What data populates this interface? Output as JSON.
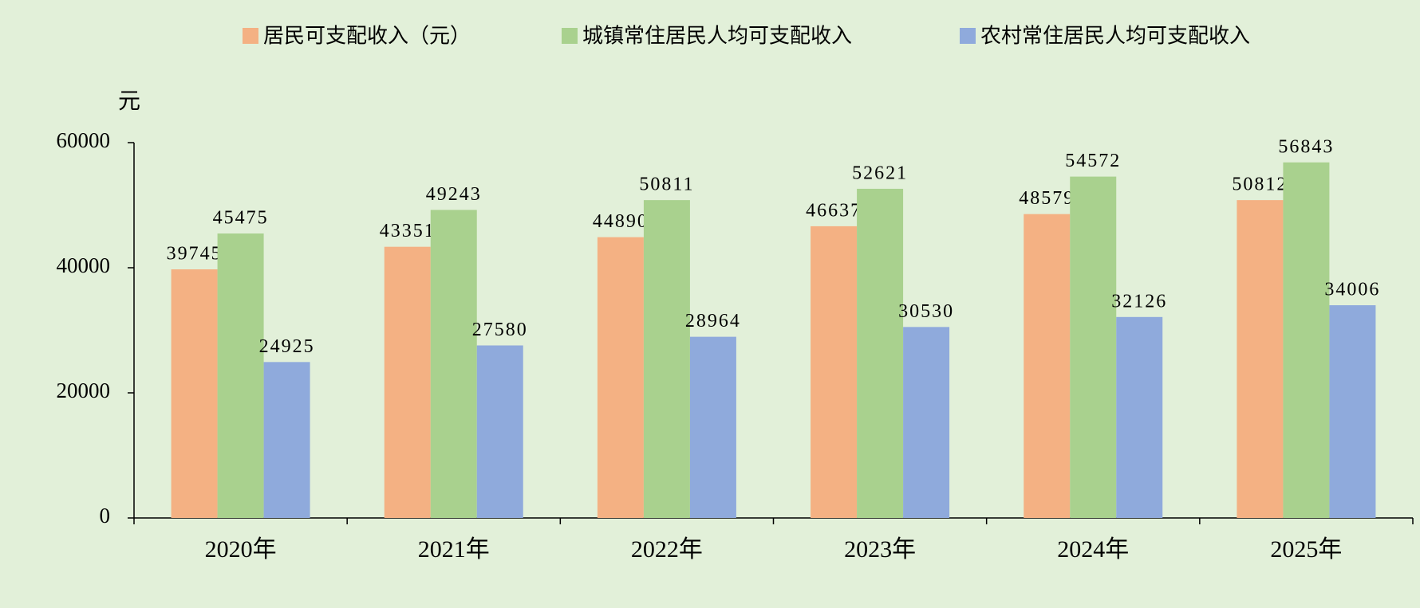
{
  "chart_data": {
    "type": "bar",
    "y_label": "元",
    "categories": [
      "2020年",
      "2021年",
      "2022年",
      "2023年",
      "2024年",
      "2025年"
    ],
    "series": [
      {
        "name": "居民可支配收入（元）",
        "color": "#f4b183",
        "values": [
          39745,
          43351,
          44890,
          46637,
          48579,
          50812
        ]
      },
      {
        "name": "城镇常住居民人均可支配收入",
        "color": "#a9d18e",
        "values": [
          45475,
          49243,
          50811,
          52621,
          54572,
          56843
        ]
      },
      {
        "name": "农村常住居民人均可支配收入",
        "color": "#8faadc",
        "values": [
          24925,
          27580,
          28964,
          30530,
          32126,
          34006
        ]
      }
    ],
    "ylim": [
      0,
      60000
    ],
    "yticks": [
      0,
      20000,
      40000,
      60000
    ],
    "grid": false,
    "legend": "top"
  }
}
